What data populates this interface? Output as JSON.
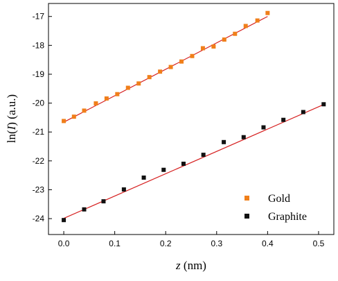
{
  "chart_data": {
    "type": "scatter",
    "xlabel": "z (nm)",
    "xlabel_parts": {
      "var": "z",
      "unit": " (nm)"
    },
    "ylabel": "ln(I) (a.u.)",
    "ylabel_parts": {
      "pre": "ln(",
      "var": "I",
      "post": ") (a.u.)"
    },
    "xlim": [
      -0.03,
      0.53
    ],
    "ylim": [
      -24.55,
      -16.55
    ],
    "xticks": [
      0.0,
      0.1,
      0.2,
      0.3,
      0.4,
      0.5
    ],
    "xtick_labels": [
      "0.0",
      "0.1",
      "0.2",
      "0.3",
      "0.4",
      "0.5"
    ],
    "yticks": [
      -24,
      -23,
      -22,
      -21,
      -20,
      -19,
      -18,
      -17
    ],
    "ytick_labels": [
      "-24",
      "-23",
      "-22",
      "-21",
      "-20",
      "-19",
      "-18",
      "-17"
    ],
    "grid": false,
    "legend_position": "bottom-right",
    "fit_line_color": "#d62020",
    "series": [
      {
        "name": "Gold",
        "color": "#f07f1a",
        "marker": "square",
        "x": [
          0.0,
          0.02,
          0.04,
          0.063,
          0.084,
          0.105,
          0.126,
          0.147,
          0.168,
          0.189,
          0.21,
          0.231,
          0.252,
          0.273,
          0.294,
          0.315,
          0.336,
          0.357,
          0.38,
          0.4
        ],
        "y": [
          -20.62,
          -20.47,
          -20.26,
          -20.01,
          -19.84,
          -19.69,
          -19.47,
          -19.32,
          -19.1,
          -18.91,
          -18.75,
          -18.56,
          -18.37,
          -18.1,
          -18.04,
          -17.8,
          -17.6,
          -17.33,
          -17.14,
          -16.88
        ],
        "fit": {
          "x": [
            0.0,
            0.4
          ],
          "y": [
            -20.66,
            -17.0
          ]
        }
      },
      {
        "name": "Graphite",
        "color": "#111111",
        "marker": "square",
        "x": [
          0.0,
          0.04,
          0.078,
          0.118,
          0.157,
          0.196,
          0.235,
          0.274,
          0.314,
          0.353,
          0.392,
          0.431,
          0.47,
          0.51
        ],
        "y": [
          -24.05,
          -23.68,
          -23.4,
          -22.99,
          -22.58,
          -22.31,
          -22.1,
          -21.79,
          -21.35,
          -21.18,
          -20.84,
          -20.58,
          -20.31,
          -20.04
        ],
        "fit": {
          "x": [
            0.0,
            0.51
          ],
          "y": [
            -23.99,
            -20.05
          ]
        }
      }
    ]
  }
}
